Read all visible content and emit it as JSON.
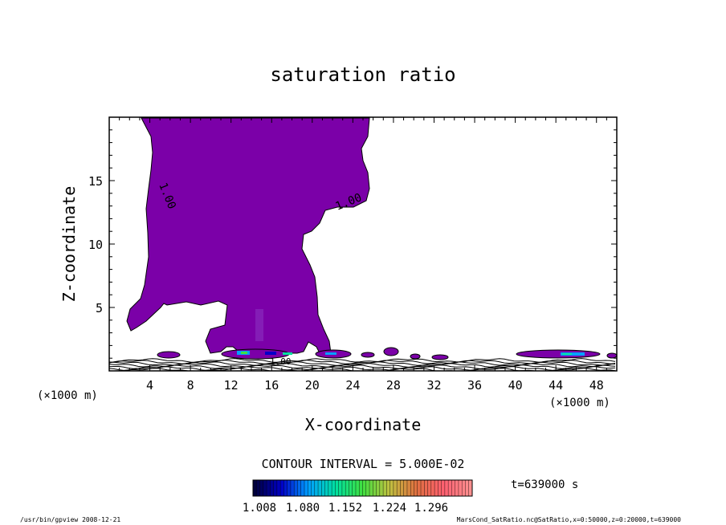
{
  "chart_data": {
    "type": "heatmap",
    "title": "saturation ratio",
    "xlabel": "X-coordinate",
    "ylabel": "Z-coordinate",
    "x_unit": "(×1000 m)",
    "z_unit": "(×1000 m)",
    "xlim": [
      0,
      50
    ],
    "ylim": [
      0,
      20
    ],
    "x_ticks": [
      4,
      8,
      12,
      16,
      20,
      24,
      28,
      32,
      36,
      40,
      44,
      48
    ],
    "y_ticks": [
      5,
      10,
      15
    ],
    "contour_labels": [
      "1.00",
      "1.00",
      "1.00"
    ],
    "contour_interval_text": "CONTOUR INTERVAL = 5.000E-02",
    "time_text": "t=639000 s",
    "colorbar": {
      "ticks": [
        "1.008",
        "1.080",
        "1.152",
        "1.224",
        "1.296"
      ],
      "colors": [
        "#00003c",
        "#0000c8",
        "#00a0ff",
        "#00e0a0",
        "#40e040",
        "#c0c040",
        "#e07040",
        "#ff6070",
        "#ff9090"
      ]
    },
    "region_color": "#7b00a8",
    "footer_left": "/usr/bin/gpview   2008-12-21",
    "footer_right": "MarsCond_SatRatio.nc@SatRatio,x=0:50000,z=0:20000,t=639000"
  }
}
